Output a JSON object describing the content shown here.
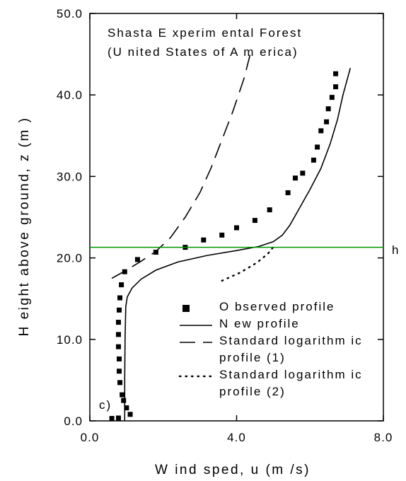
{
  "chart_data": {
    "type": "line",
    "xlabel": "W ind sped, u (m /s)",
    "ylabel": "H eight above ground, z (m )",
    "xlim": [
      0,
      8
    ],
    "ylim": [
      0,
      50
    ],
    "xticks": [
      0,
      4,
      8
    ],
    "xtick_labels": [
      "0.0",
      "4.0",
      "8.0"
    ],
    "yticks": [
      0,
      10,
      20,
      30,
      40,
      50
    ],
    "ytick_labels": [
      "0.0",
      "10.0",
      "20.0",
      "30.0",
      "40.0",
      "50.0"
    ],
    "grid": false,
    "legend_position": "bottom-right",
    "annotations": {
      "site_line1": "Shasta E xperim ental Forest",
      "site_line2": "(U nited States of A m erica)",
      "panel": "c)",
      "canopy_height_label": "h"
    },
    "canopy_height": {
      "y": 21.3,
      "color": "#009900"
    },
    "series": [
      {
        "name": "O bserved profile",
        "style": "markers",
        "marker": "square",
        "points": [
          [
            0.6,
            0.3
          ],
          [
            0.78,
            0.35
          ],
          [
            1.1,
            0.8
          ],
          [
            1.0,
            1.6
          ],
          [
            0.92,
            2.5
          ],
          [
            0.88,
            3.2
          ],
          [
            0.82,
            4.7
          ],
          [
            0.8,
            6.1
          ],
          [
            0.8,
            7.6
          ],
          [
            0.78,
            9.1
          ],
          [
            0.78,
            10.6
          ],
          [
            0.78,
            12.1
          ],
          [
            0.8,
            13.6
          ],
          [
            0.82,
            15.1
          ],
          [
            0.86,
            16.7
          ],
          [
            0.95,
            18.3
          ],
          [
            1.3,
            19.8
          ],
          [
            1.8,
            20.7
          ],
          [
            2.6,
            21.3
          ],
          [
            3.1,
            22.2
          ],
          [
            3.6,
            22.8
          ],
          [
            4.0,
            23.7
          ],
          [
            4.5,
            24.6
          ],
          [
            4.9,
            25.9
          ],
          [
            5.4,
            28.0
          ],
          [
            5.6,
            29.8
          ],
          [
            5.8,
            30.4
          ],
          [
            6.1,
            32.0
          ],
          [
            6.2,
            33.6
          ],
          [
            6.3,
            35.6
          ],
          [
            6.45,
            36.7
          ],
          [
            6.5,
            38.3
          ],
          [
            6.6,
            39.7
          ],
          [
            6.7,
            41.0
          ],
          [
            6.7,
            42.6
          ]
        ]
      },
      {
        "name": "N ew profile",
        "style": "solid",
        "points": [
          [
            0.95,
            0.0
          ],
          [
            0.95,
            5.0
          ],
          [
            0.96,
            10.0
          ],
          [
            0.98,
            14.0
          ],
          [
            1.02,
            15.2
          ],
          [
            1.15,
            16.3
          ],
          [
            1.4,
            17.4
          ],
          [
            1.8,
            18.5
          ],
          [
            2.4,
            19.5
          ],
          [
            3.2,
            20.3
          ],
          [
            4.0,
            20.9
          ],
          [
            4.6,
            21.4
          ],
          [
            5.0,
            22.0
          ],
          [
            5.25,
            22.8
          ],
          [
            5.45,
            24.0
          ],
          [
            5.7,
            26.0
          ],
          [
            6.0,
            28.4
          ],
          [
            6.3,
            31.0
          ],
          [
            6.55,
            34.0
          ],
          [
            6.75,
            37.0
          ],
          [
            6.9,
            40.0
          ],
          [
            7.1,
            43.3
          ]
        ]
      },
      {
        "name": "Standard logarithm ic profile (1)",
        "style": "dashed",
        "points": [
          [
            0.6,
            17.5
          ],
          [
            1.0,
            18.5
          ],
          [
            1.4,
            19.6
          ],
          [
            1.8,
            20.8
          ],
          [
            2.2,
            22.5
          ],
          [
            2.6,
            25.0
          ],
          [
            3.0,
            28.0
          ],
          [
            3.3,
            31.0
          ],
          [
            3.6,
            34.5
          ],
          [
            3.9,
            38.0
          ],
          [
            4.2,
            42.0
          ],
          [
            4.4,
            45.5
          ]
        ]
      },
      {
        "name": "Standard logarithm ic profile (2)",
        "style": "dotted",
        "points": [
          [
            3.6,
            17.2
          ],
          [
            4.1,
            18.2
          ],
          [
            4.55,
            19.4
          ],
          [
            4.85,
            20.5
          ],
          [
            5.05,
            21.6
          ]
        ]
      }
    ],
    "legend": [
      {
        "label_lines": [
          "O bserved profile"
        ],
        "style": "markers"
      },
      {
        "label_lines": [
          "N ew profile"
        ],
        "style": "solid"
      },
      {
        "label_lines": [
          "Standard logarithm ic",
          "profile (1)"
        ],
        "style": "dashed"
      },
      {
        "label_lines": [
          "Standard logarithm ic",
          "profile (2)"
        ],
        "style": "dotted"
      }
    ]
  }
}
